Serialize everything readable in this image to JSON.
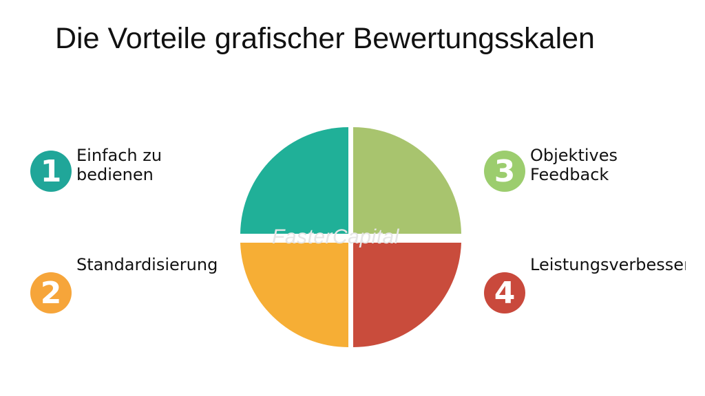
{
  "title": "Die Vorteile grafischer Bewertungsskalen",
  "items": [
    {
      "number": "1",
      "line1": "Einfach zu",
      "line2": "bedienen",
      "color": "#20a699"
    },
    {
      "number": "2",
      "line1": "Standardisierung",
      "line2": "",
      "color": "#f6a53a"
    },
    {
      "number": "3",
      "line1": "Objektives",
      "line2": "Feedback",
      "color": "#9ccd6e"
    },
    {
      "number": "4",
      "line1": "Leistungsverbesseru",
      "line2": "",
      "color": "#c9493c"
    }
  ],
  "quadrant_colors": {
    "top_left": "#20b098",
    "top_right": "#a8c46e",
    "bottom_left": "#f6ae35",
    "bottom_right": "#c94c3c"
  },
  "watermark": "FasterCapital"
}
